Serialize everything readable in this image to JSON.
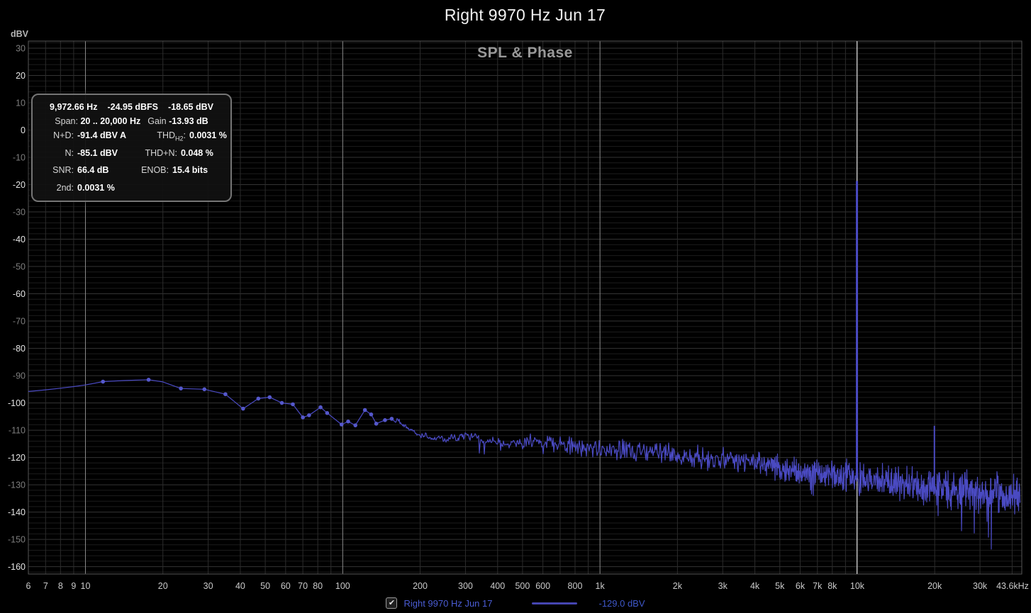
{
  "window_title": "Right 9970 Hz Jun 17",
  "plot_title": "SPL & Phase",
  "y_axis_unit": "dBV",
  "infobox": {
    "peak": {
      "hz": "9,972.66 Hz",
      "dbfs": "-24.95 dBFS",
      "dbv": "-18.65 dBV"
    },
    "span_label": "Span:",
    "span_value": "20 .. 20,000 Hz",
    "gain_label": "Gain",
    "gain_value": "-13.93 dB",
    "rows": [
      {
        "left_label": "N+D:",
        "left_value": "-91.4 dBV A",
        "right_label": "THD",
        "right_sub": "H2",
        "right_colon": ":",
        "right_value": "0.0031 %"
      },
      {
        "left_label": "N:",
        "left_value": "-85.1 dBV",
        "right_label": "THD+N:",
        "right_value": "0.048 %"
      },
      {
        "left_label": "SNR:",
        "left_value": "66.4 dB",
        "right_label": "ENOB:",
        "right_value": "15.4 bits"
      }
    ],
    "extra_row": {
      "label": "2nd:",
      "value": "0.0031 %"
    }
  },
  "legend": {
    "checkbox_checked": true,
    "series_label": "Right 9970 Hz Jun 17",
    "value_label": "-129.0 dBV"
  },
  "chart_data": {
    "type": "line",
    "title": "SPL & Phase",
    "x_axis": {
      "scale": "log",
      "unit": "Hz",
      "min_hz": 6,
      "max_hz": 43600,
      "decade_lines": [
        10,
        100,
        1000,
        10000
      ],
      "tick_labels": [
        {
          "hz": 6,
          "label": "6"
        },
        {
          "hz": 7,
          "label": "7"
        },
        {
          "hz": 8,
          "label": "8"
        },
        {
          "hz": 9,
          "label": "9"
        },
        {
          "hz": 10,
          "label": "10"
        },
        {
          "hz": 20,
          "label": "20"
        },
        {
          "hz": 30,
          "label": "30"
        },
        {
          "hz": 40,
          "label": "40"
        },
        {
          "hz": 50,
          "label": "50"
        },
        {
          "hz": 60,
          "label": "60"
        },
        {
          "hz": 70,
          "label": "70"
        },
        {
          "hz": 80,
          "label": "80"
        },
        {
          "hz": 100,
          "label": "100"
        },
        {
          "hz": 200,
          "label": "200"
        },
        {
          "hz": 300,
          "label": "300"
        },
        {
          "hz": 400,
          "label": "400"
        },
        {
          "hz": 500,
          "label": "500"
        },
        {
          "hz": 600,
          "label": "600"
        },
        {
          "hz": 800,
          "label": "800"
        },
        {
          "hz": 1000,
          "label": "1k"
        },
        {
          "hz": 2000,
          "label": "2k"
        },
        {
          "hz": 3000,
          "label": "3k"
        },
        {
          "hz": 4000,
          "label": "4k"
        },
        {
          "hz": 5000,
          "label": "5k"
        },
        {
          "hz": 6000,
          "label": "6k"
        },
        {
          "hz": 7000,
          "label": "7k"
        },
        {
          "hz": 8000,
          "label": "8k"
        },
        {
          "hz": 10000,
          "label": "10k"
        },
        {
          "hz": 20000,
          "label": "20k"
        },
        {
          "hz": 30000,
          "label": "30k"
        },
        {
          "hz": 43600,
          "label": "43.6kHz"
        }
      ]
    },
    "y_axis": {
      "unit": "dBV",
      "min": -162.7,
      "max": 32.6,
      "major_step": 10,
      "minor_step": 2,
      "ticks": [
        30,
        20,
        10,
        0,
        -10,
        -20,
        -30,
        -40,
        -50,
        -60,
        -70,
        -80,
        -90,
        -100,
        -110,
        -120,
        -130,
        -140,
        -150,
        -160
      ]
    },
    "cursor_hz": 9972.66,
    "series": [
      {
        "name": "Right 9970 Hz Jun 17",
        "color": "#4a4ac2",
        "marker_color": "#5558cc",
        "points_hz_dbv": [
          [
            6,
            -95.8,
            0
          ],
          [
            7,
            -95.2,
            0
          ],
          [
            8,
            -94.6,
            0
          ],
          [
            9,
            -94.0,
            0
          ],
          [
            10,
            -93.4,
            0
          ],
          [
            11.7,
            -92.2,
            1
          ],
          [
            14,
            -91.8,
            0
          ],
          [
            17.6,
            -91.5,
            1
          ],
          [
            20,
            -92.3,
            0
          ],
          [
            23.5,
            -94.7,
            1
          ],
          [
            29,
            -95.0,
            1
          ],
          [
            35,
            -96.8,
            1
          ],
          [
            41,
            -102.1,
            1
          ],
          [
            47,
            -98.4,
            1
          ],
          [
            52,
            -97.9,
            1
          ],
          [
            58,
            -100.0,
            1
          ],
          [
            64,
            -100.5,
            1
          ],
          [
            70,
            -105.3,
            1
          ],
          [
            74,
            -104.5,
            1
          ],
          [
            82,
            -101.6,
            1
          ],
          [
            87,
            -103.7,
            1
          ],
          [
            99,
            -107.9,
            1
          ],
          [
            105,
            -106.8,
            1
          ],
          [
            112,
            -108.2,
            1
          ],
          [
            122,
            -102.6,
            1
          ],
          [
            129,
            -104.2,
            1
          ],
          [
            135,
            -107.6,
            1
          ],
          [
            146,
            -106.3,
            1
          ],
          [
            155,
            -105.8,
            1
          ]
        ],
        "noise_mid_hz_dbv": [
          [
            160,
            -106
          ],
          [
            200,
            -112
          ],
          [
            250,
            -113
          ],
          [
            300,
            -112
          ],
          [
            400,
            -114
          ],
          [
            500,
            -115
          ],
          [
            600,
            -114
          ],
          [
            800,
            -116
          ],
          [
            1000,
            -117
          ],
          [
            1500,
            -118
          ],
          [
            2000,
            -119
          ],
          [
            3000,
            -121
          ],
          [
            4000,
            -122
          ],
          [
            5000,
            -124
          ],
          [
            6000,
            -125
          ],
          [
            8000,
            -126
          ],
          [
            10000,
            -127
          ],
          [
            14000,
            -129
          ],
          [
            20000,
            -131
          ],
          [
            30000,
            -133
          ],
          [
            43600,
            -134
          ]
        ],
        "noise_spread_hz_db": [
          [
            160,
            2
          ],
          [
            300,
            3
          ],
          [
            600,
            4
          ],
          [
            1000,
            4.5
          ],
          [
            2000,
            5
          ],
          [
            5000,
            5.5
          ],
          [
            10000,
            6.5
          ],
          [
            20000,
            8
          ],
          [
            43600,
            8.5
          ]
        ],
        "spikes_hz_dbv": [
          [
            9972.66,
            -18.65
          ],
          [
            19945,
            -108.4
          ]
        ]
      }
    ]
  }
}
